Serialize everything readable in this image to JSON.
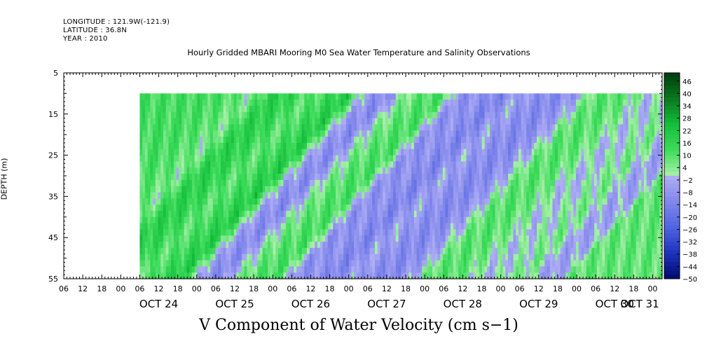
{
  "header": {
    "longitude": "LONGITUDE : 121.9W(-121.9)",
    "latitude": "LATITUDE : 36.8N",
    "year": "YEAR : 2010"
  },
  "chart_data": {
    "type": "heatmap",
    "title": "Hourly Gridded MBARI Mooring M0 Sea Water Temperature and Salinity Observations",
    "xlabel": "",
    "ylabel": "DEPTH (m)",
    "bottom_label": "V Component of Water Velocity (cm s−1)",
    "y_axis": {
      "range": [
        5,
        55
      ],
      "inverted": true,
      "ticks": [
        5,
        15,
        25,
        35,
        45,
        55
      ]
    },
    "x_axis": {
      "start": "2010-10-23T06:00",
      "end": "2010-10-31T03:00",
      "hour_labels": [
        "06",
        "12",
        "18",
        "00",
        "06",
        "12",
        "18",
        "00",
        "06",
        "12",
        "18",
        "00",
        "06",
        "12",
        "18",
        "00",
        "06",
        "12",
        "18",
        "00",
        "06",
        "12",
        "18",
        "00",
        "06",
        "12",
        "18",
        "00",
        "06",
        "12",
        "18",
        "00"
      ],
      "date_labels": [
        "OCT 24",
        "OCT 25",
        "OCT 26",
        "OCT 27",
        "OCT 28",
        "OCT 29",
        "OCT 30",
        "OCT 31"
      ]
    },
    "data_extent": {
      "x_start": "2010-10-24T06:00",
      "x_end": "2010-10-31T03:00",
      "depth_top": 10,
      "depth_bottom": 55
    },
    "colorbar": {
      "range": [
        -50,
        50
      ],
      "labels": [
        "46",
        "40",
        "34",
        "28",
        "22",
        "16",
        "10",
        "4",
        "−2",
        "−8",
        "−14",
        "−20",
        "−26",
        "−32",
        "−38",
        "−44",
        "−50"
      ]
    },
    "v_profile_by_time": [
      {
        "t": "2010-10-24T06:00",
        "v": 12
      },
      {
        "t": "2010-10-24T12:00",
        "v": 9
      },
      {
        "t": "2010-10-24T18:00",
        "v": 5
      },
      {
        "t": "2010-10-25T00:00",
        "v": 18
      },
      {
        "t": "2010-10-25T06:00",
        "v": 16
      },
      {
        "t": "2010-10-25T12:00",
        "v": 8
      },
      {
        "t": "2010-10-25T18:00",
        "v": 14
      },
      {
        "t": "2010-10-26T00:00",
        "v": 20
      },
      {
        "t": "2010-10-26T06:00",
        "v": -6
      },
      {
        "t": "2010-10-26T12:00",
        "v": -12
      },
      {
        "t": "2010-10-26T18:00",
        "v": 4
      },
      {
        "t": "2010-10-27T00:00",
        "v": 10
      },
      {
        "t": "2010-10-27T06:00",
        "v": 12
      },
      {
        "t": "2010-10-27T12:00",
        "v": -10
      },
      {
        "t": "2010-10-27T18:00",
        "v": -8
      },
      {
        "t": "2010-10-28T00:00",
        "v": -14
      },
      {
        "t": "2010-10-28T06:00",
        "v": -4
      },
      {
        "t": "2010-10-28T12:00",
        "v": -10
      },
      {
        "t": "2010-10-28T18:00",
        "v": -12
      },
      {
        "t": "2010-10-29T00:00",
        "v": -6
      },
      {
        "t": "2010-10-29T06:00",
        "v": 8
      },
      {
        "t": "2010-10-29T12:00",
        "v": 10
      },
      {
        "t": "2010-10-29T18:00",
        "v": 6
      },
      {
        "t": "2010-10-30T00:00",
        "v": -2
      },
      {
        "t": "2010-10-30T06:00",
        "v": 2
      },
      {
        "t": "2010-10-30T12:00",
        "v": 6
      },
      {
        "t": "2010-10-30T18:00",
        "v": -6
      },
      {
        "t": "2010-10-31T00:00",
        "v": -4
      },
      {
        "t": "2010-10-31T03:00",
        "v": 8
      }
    ]
  }
}
